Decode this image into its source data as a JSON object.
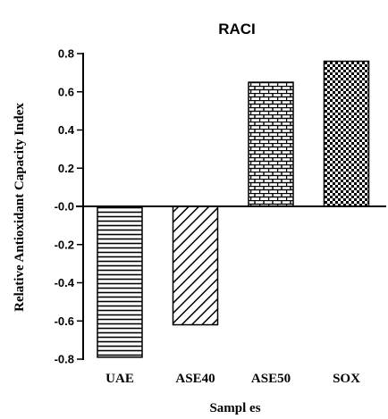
{
  "chart_data": {
    "type": "bar",
    "title": "RACI",
    "xlabel": "Sampl es",
    "ylabel": "Relative Antioxidant Capacity Index",
    "categories": [
      "UAE",
      "ASE40",
      "ASE50",
      "SOX"
    ],
    "values": [
      -0.79,
      -0.62,
      0.65,
      0.76
    ],
    "ylim": [
      -0.8,
      0.8
    ],
    "yticks": [
      "0.8",
      "0.6",
      "0.4",
      "0.2",
      "-0.0",
      "-0.2",
      "-0.4",
      "-0.6",
      "-0.8"
    ],
    "ytick_values": [
      0.8,
      0.6,
      0.4,
      0.2,
      0.0,
      -0.2,
      -0.4,
      -0.6,
      -0.8
    ],
    "patterns": [
      "horizontal-lines",
      "diagonal-hatch",
      "brick",
      "checkerboard"
    ],
    "bar_color": "#000000",
    "grid": false,
    "legend": "none"
  }
}
